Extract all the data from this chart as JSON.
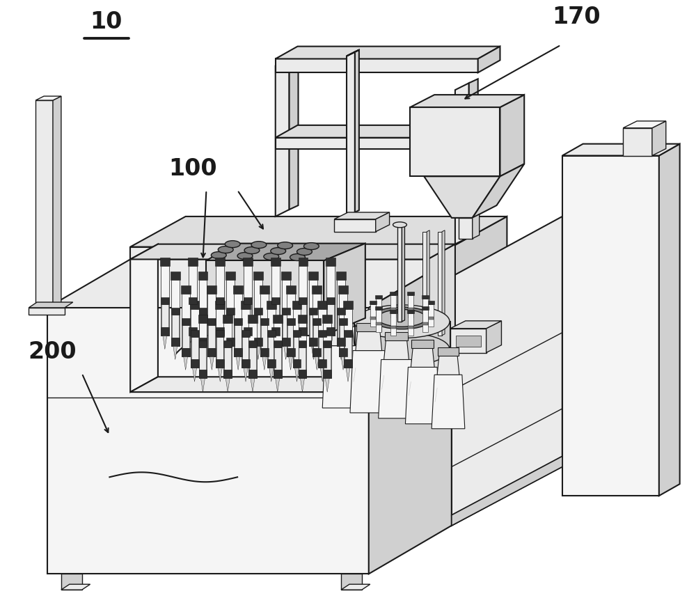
{
  "bg_color": "#ffffff",
  "line_color": "#1a1a1a",
  "lw_main": 2.0,
  "lw_med": 1.5,
  "lw_thin": 1.0,
  "lw_hair": 0.7,
  "label_10": "10",
  "label_100": "100",
  "label_170": "170",
  "label_200": "200",
  "label_fontsize": 24,
  "fig_width": 10.0,
  "fig_height": 8.7
}
